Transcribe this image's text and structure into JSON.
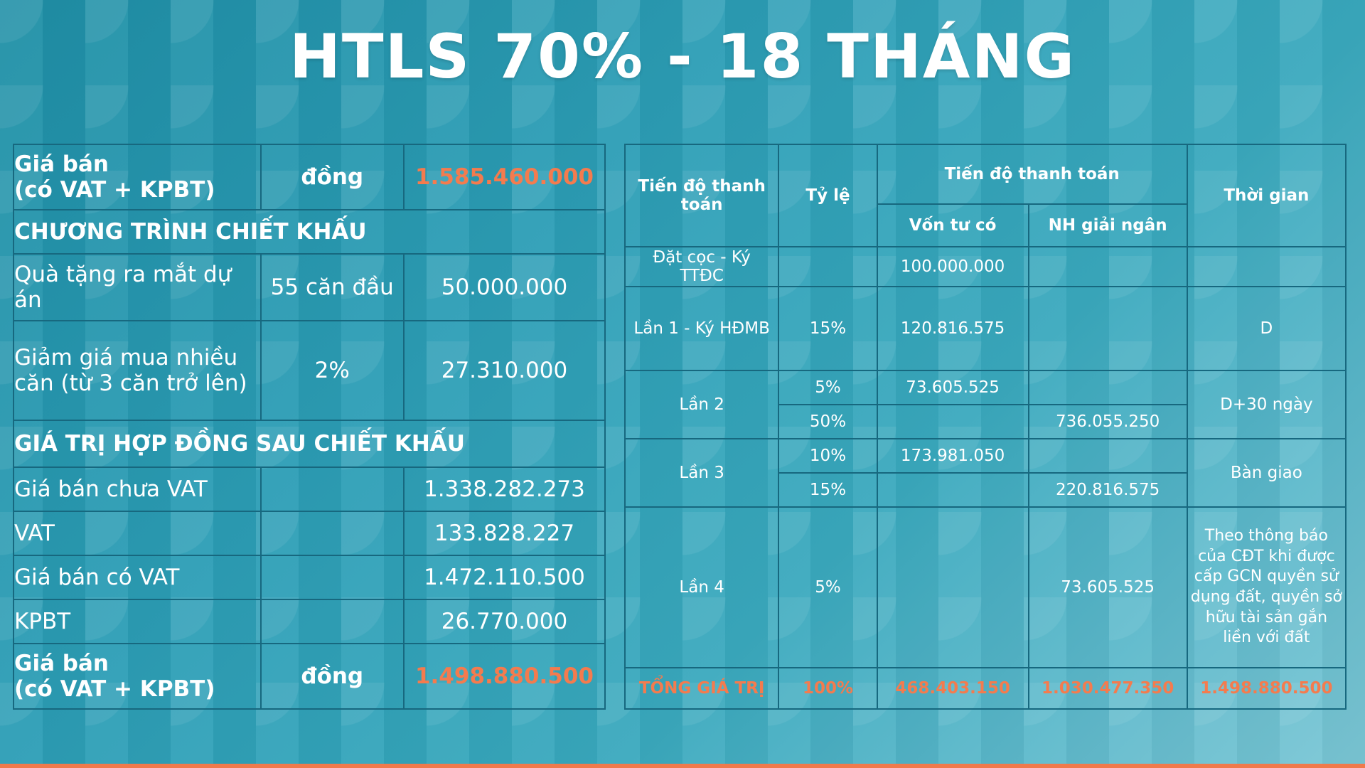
{
  "title": "HTLS 70% - 18 THÁNG",
  "left_table": {
    "price_label_line1": "Giá bán",
    "price_label_line2": "(có VAT + KPBT)",
    "price_unit": "đồng",
    "price_value": "1.585.460.000",
    "discount_heading": "CHƯƠNG TRÌNH CHIẾT KHẤU",
    "gift_label": "Quà tặng ra mắt dự án",
    "gift_condition": "55 căn đầu",
    "gift_value": "50.000.000",
    "multi_label": "Giảm giá mua nhiều căn (từ 3 căn trở lên)",
    "multi_rate": "2%",
    "multi_value": "27.310.000",
    "contract_heading": "GIÁ TRỊ HỢP ĐỒNG SAU CHIẾT KHẤU",
    "rows": [
      {
        "label": "Giá bán chưa VAT",
        "value": "1.338.282.273"
      },
      {
        "label": "VAT",
        "value": "133.828.227"
      },
      {
        "label": "Giá bán có VAT",
        "value": "1.472.110.500"
      },
      {
        "label": "KPBT",
        "value": "26.770.000"
      }
    ],
    "final_label_line1": "Giá bán",
    "final_label_line2": " (có VAT + KPBT)",
    "final_unit": "đồng",
    "final_value": "1.498.880.500"
  },
  "right_table": {
    "headers": {
      "stage": "Tiến độ thanh toán",
      "rate": "Tỷ lệ",
      "payment": "Tiến độ thanh toán",
      "own": "Vốn tư có",
      "bank": "NH giải ngân",
      "time": "Thời gian"
    },
    "deposit": {
      "stage": "Đặt cọc - Ký TTĐC",
      "own": "100.000.000"
    },
    "lan1": {
      "stage": "Lần 1 - Ký HĐMB",
      "rate": "15%",
      "own": "120.816.575",
      "time": "D"
    },
    "lan2": {
      "stage": "Lần 2",
      "rate_a": "5%",
      "own_a": "73.605.525",
      "rate_b": "50%",
      "bank_b": "736.055.250",
      "time": "D+30 ngày"
    },
    "lan3": {
      "stage": "Lần 3",
      "rate_a": "10%",
      "own_a": "173.981.050",
      "rate_b": "15%",
      "bank_b": "220.816.575",
      "time": "Bàn giao"
    },
    "lan4": {
      "stage": "Lần 4",
      "rate": "5%",
      "bank": "73.605.525",
      "time": "Theo thông báo của CĐT khi được cấp GCN quyền sử dụng đất, quyền sở hữu tài sản gắn liền với đất"
    },
    "total": {
      "label": "TỔNG GIÁ TRỊ",
      "rate": "100%",
      "own": "468.403.150",
      "bank": "1.030.477.350",
      "all": "1.498.880.500"
    }
  }
}
